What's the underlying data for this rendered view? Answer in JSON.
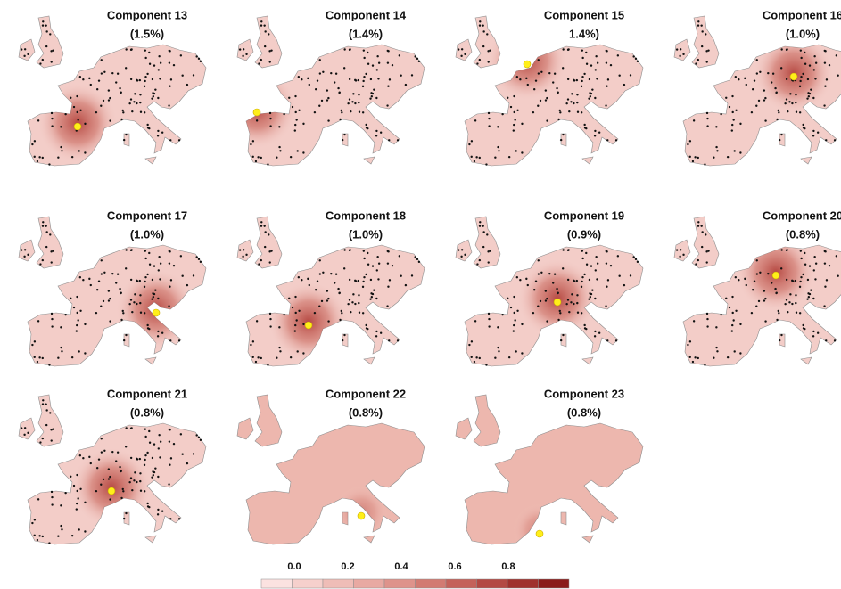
{
  "panels": [
    {
      "title": "Component 13",
      "subtitle": "(1.5%)"
    },
    {
      "title": "Component 14",
      "subtitle": "(1.4%)"
    },
    {
      "title": "Component 15",
      "subtitle": "1.4%)"
    },
    {
      "title": "Component 16",
      "subtitle": "(1.0%)"
    },
    {
      "title": "Component 17",
      "subtitle": "(1.0%)"
    },
    {
      "title": "Component 18",
      "subtitle": "(1.0%)"
    },
    {
      "title": "Component 19",
      "subtitle": "(0.9%)"
    },
    {
      "title": "Component 20",
      "subtitle": "(0.8%)"
    },
    {
      "title": "Component 21",
      "subtitle": "(0.8%)"
    },
    {
      "title": "Component 22",
      "subtitle": "(0.8%)"
    },
    {
      "title": "Component 23",
      "subtitle": "(0.8%)"
    }
  ],
  "colorbar": {
    "ticks": [
      {
        "value": 0,
        "label": "0.0"
      },
      {
        "value": 0.2,
        "label": "0.2"
      },
      {
        "value": 0.4,
        "label": "0.4"
      },
      {
        "value": 0.6,
        "label": "0.6"
      },
      {
        "value": 0.8,
        "label": "0.8"
      }
    ],
    "colors": [
      "#fbe2e0",
      "#f6d0cc",
      "#efbdb7",
      "#e8a9a2",
      "#de938b",
      "#d27b72",
      "#c4625a",
      "#b34943",
      "#9f312d",
      "#8a1b1a"
    ]
  }
}
